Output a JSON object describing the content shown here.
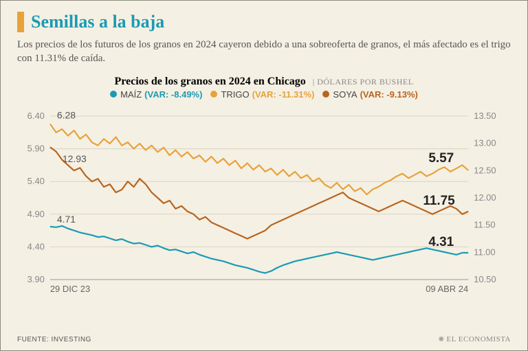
{
  "title": "Semillas a la baja",
  "title_color": "#1a9bb3",
  "title_bar_color": "#e8a23a",
  "subtitle": "Los precios de los futuros de los granos en 2024 cayeron debido a una sobreoferta de granos, el más afectado es el trigo con 11.31% de caída.",
  "chart": {
    "title": "Precios de los granos en 2024 en Chicago",
    "unit_label": "DÓLARES POR BUSHEL",
    "separator": " | ",
    "background_color": "#f5f0e4",
    "left_axis": {
      "min": 3.9,
      "max": 6.4,
      "step": 0.5,
      "ticks": [
        "6.40",
        "5.90",
        "5.40",
        "4.90",
        "4.40",
        "3.90"
      ]
    },
    "right_axis": {
      "min": 10.5,
      "max": 13.5,
      "step": 0.5,
      "ticks": [
        "13.50",
        "13.00",
        "12.50",
        "12.00",
        "11.50",
        "11.00",
        "10.50"
      ]
    },
    "x_start_label": "29 DIC 23",
    "x_end_label": "09 ABR 24",
    "grid_color": "#d8d3c2",
    "series": [
      {
        "id": "maiz",
        "name": "MAÍZ",
        "var_label": "(VAR: -8.49%)",
        "color": "#1a9bb3",
        "axis": "left",
        "start_callout": "4.71",
        "end_callout": "4.31",
        "data": [
          4.71,
          4.7,
          4.72,
          4.68,
          4.65,
          4.62,
          4.6,
          4.58,
          4.55,
          4.56,
          4.53,
          4.5,
          4.52,
          4.48,
          4.45,
          4.46,
          4.43,
          4.4,
          4.42,
          4.38,
          4.35,
          4.36,
          4.33,
          4.3,
          4.32,
          4.28,
          4.25,
          4.22,
          4.2,
          4.18,
          4.15,
          4.12,
          4.1,
          4.08,
          4.05,
          4.02,
          4.0,
          4.03,
          4.08,
          4.12,
          4.15,
          4.18,
          4.2,
          4.22,
          4.24,
          4.26,
          4.28,
          4.3,
          4.32,
          4.3,
          4.28,
          4.26,
          4.24,
          4.22,
          4.2,
          4.22,
          4.24,
          4.26,
          4.28,
          4.3,
          4.32,
          4.34,
          4.36,
          4.38,
          4.36,
          4.34,
          4.32,
          4.3,
          4.28,
          4.31,
          4.31
        ]
      },
      {
        "id": "trigo",
        "name": "TRIGO",
        "var_label": "(VAR: -11.31%)",
        "color": "#e8a23a",
        "axis": "left",
        "start_callout": "6.28",
        "end_callout": "5.57",
        "data": [
          6.28,
          6.15,
          6.2,
          6.1,
          6.18,
          6.05,
          6.12,
          6.0,
          5.95,
          6.05,
          5.98,
          6.08,
          5.95,
          6.0,
          5.9,
          5.98,
          5.88,
          5.95,
          5.85,
          5.92,
          5.8,
          5.88,
          5.78,
          5.85,
          5.75,
          5.8,
          5.7,
          5.78,
          5.68,
          5.75,
          5.65,
          5.72,
          5.6,
          5.68,
          5.58,
          5.65,
          5.55,
          5.6,
          5.5,
          5.58,
          5.48,
          5.55,
          5.45,
          5.5,
          5.4,
          5.45,
          5.35,
          5.3,
          5.38,
          5.28,
          5.35,
          5.25,
          5.3,
          5.2,
          5.28,
          5.32,
          5.38,
          5.42,
          5.48,
          5.52,
          5.45,
          5.5,
          5.55,
          5.48,
          5.52,
          5.58,
          5.62,
          5.55,
          5.6,
          5.65,
          5.57
        ]
      },
      {
        "id": "soya",
        "name": "SOYA",
        "var_label": "(VAR: -9.13%)",
        "color": "#b8651e",
        "axis": "right",
        "start_callout": "12.93",
        "end_callout": "11.75",
        "data": [
          12.93,
          12.85,
          12.7,
          12.6,
          12.5,
          12.55,
          12.4,
          12.3,
          12.35,
          12.2,
          12.25,
          12.1,
          12.15,
          12.3,
          12.2,
          12.35,
          12.25,
          12.1,
          12.0,
          11.9,
          11.95,
          11.8,
          11.85,
          11.75,
          11.7,
          11.6,
          11.65,
          11.55,
          11.5,
          11.45,
          11.4,
          11.35,
          11.3,
          11.25,
          11.3,
          11.35,
          11.4,
          11.5,
          11.55,
          11.6,
          11.65,
          11.7,
          11.75,
          11.8,
          11.85,
          11.9,
          11.95,
          12.0,
          12.05,
          12.1,
          12.0,
          11.95,
          11.9,
          11.85,
          11.8,
          11.75,
          11.8,
          11.85,
          11.9,
          11.95,
          11.9,
          11.85,
          11.8,
          11.75,
          11.7,
          11.75,
          11.8,
          11.85,
          11.8,
          11.7,
          11.75
        ]
      }
    ]
  },
  "source_label": "FUENTE: INVESTING",
  "brand_label": "EL ECONOMISTA"
}
